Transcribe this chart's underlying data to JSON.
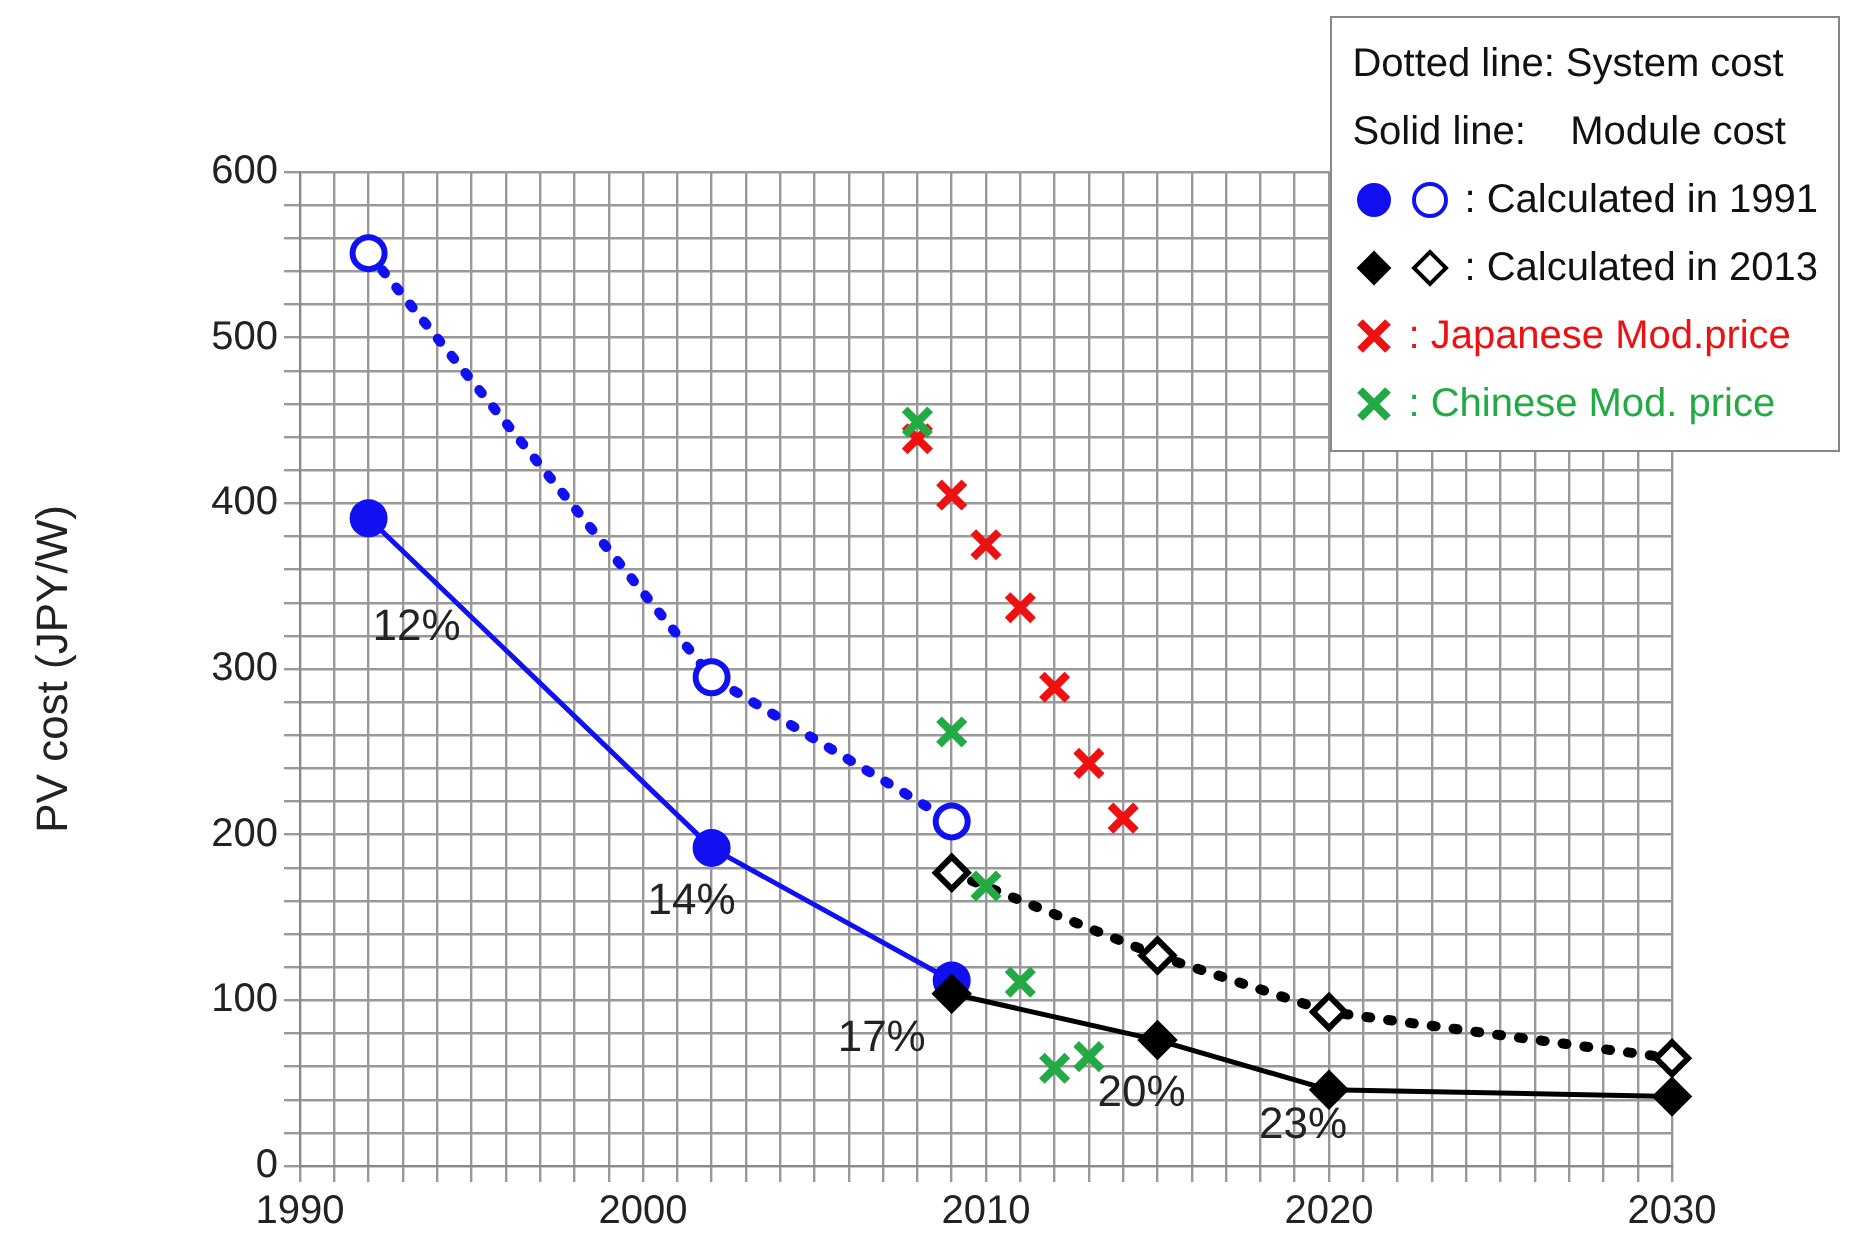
{
  "chart_data": {
    "type": "line",
    "ylabel": "PV cost (JPY/W)",
    "legend_title": "Dotted line: System cost\nSolid line:    Module cost",
    "legend": "top right",
    "grid": true,
    "xlim": [
      1990,
      2030
    ],
    "ylim": [
      0,
      600
    ],
    "xticks": [
      1990,
      {
        "value": 1991,
        "label": null
      },
      {
        "value": 1992,
        "label": null
      },
      {
        "value": 1993,
        "label": null
      },
      {
        "value": 1994,
        "label": null
      },
      {
        "value": 1995,
        "label": null
      },
      {
        "value": 1996,
        "label": null
      },
      {
        "value": 1997,
        "label": null
      },
      {
        "value": 1998,
        "label": null
      },
      {
        "value": 1999,
        "label": null
      },
      2000,
      {
        "value": 2001,
        "label": null
      },
      {
        "value": 2002,
        "label": null
      },
      {
        "value": 2003,
        "label": null
      },
      {
        "value": 2004,
        "label": null
      },
      {
        "value": 2005,
        "label": null
      },
      {
        "value": 2006,
        "label": null
      },
      {
        "value": 2007,
        "label": null
      },
      {
        "value": 2008,
        "label": null
      },
      {
        "value": 2009,
        "label": null
      },
      2010,
      {
        "value": 2011,
        "label": null
      },
      {
        "value": 2012,
        "label": null
      },
      {
        "value": 2013,
        "label": null
      },
      {
        "value": 2014,
        "label": null
      },
      {
        "value": 2015,
        "label": null
      },
      {
        "value": 2016,
        "label": null
      },
      {
        "value": 2017,
        "label": null
      },
      {
        "value": 2018,
        "label": null
      },
      {
        "value": 2019,
        "label": null
      },
      2020,
      {
        "value": 2021,
        "label": null
      },
      {
        "value": 2022,
        "label": null
      },
      {
        "value": 2023,
        "label": null
      },
      {
        "value": 2024,
        "label": null
      },
      {
        "value": 2025,
        "label": null
      },
      {
        "value": 2026,
        "label": null
      },
      {
        "value": 2027,
        "label": null
      },
      {
        "value": 2028,
        "label": null
      },
      {
        "value": 2029,
        "label": null
      },
      2030
    ],
    "yticks": [
      0,
      {
        "value": 20,
        "label": null
      },
      {
        "value": 40,
        "label": null
      },
      {
        "value": 60,
        "label": null
      },
      {
        "value": 80,
        "label": null
      },
      100,
      {
        "value": 120,
        "label": null
      },
      {
        "value": 140,
        "label": null
      },
      {
        "value": 160,
        "label": null
      },
      {
        "value": 180,
        "label": null
      },
      200,
      {
        "value": 220,
        "label": null
      },
      {
        "value": 240,
        "label": null
      },
      {
        "value": 260,
        "label": null
      },
      {
        "value": 280,
        "label": null
      },
      300,
      {
        "value": 320,
        "label": null
      },
      {
        "value": 340,
        "label": null
      },
      {
        "value": 360,
        "label": null
      },
      {
        "value": 380,
        "label": null
      },
      400,
      {
        "value": 420,
        "label": null
      },
      {
        "value": 440,
        "label": null
      },
      {
        "value": 460,
        "label": null
      },
      {
        "value": 480,
        "label": null
      },
      500,
      {
        "value": 520,
        "label": null
      },
      {
        "value": 540,
        "label": null
      },
      {
        "value": 560,
        "label": null
      },
      {
        "value": 580,
        "label": null
      },
      600
    ],
    "series": [
      {
        "color": "#1010f0",
        "marker": "circle",
        "line_style": "dotted",
        "x": [
          1992,
          2002,
          2009
        ],
        "values": [
          551,
          295,
          208
        ]
      },
      {
        "name": ": Calculated in 1991",
        "color": "#1010f0",
        "marker": "circle",
        "line_style": "solid",
        "x": [
          1992,
          2002,
          2009
        ],
        "values": [
          391,
          192,
          112
        ]
      },
      {
        "color": "#000000",
        "marker": "diamond",
        "line_style": "dotted",
        "x": [
          2009,
          2015,
          2020,
          2030
        ],
        "values": [
          177,
          127,
          93,
          65
        ]
      },
      {
        "name": ": Calculated in 2013",
        "color": "#000000",
        "marker": "diamond",
        "line_style": "solid",
        "x": [
          2009,
          2015,
          2020,
          2030
        ],
        "values": [
          104,
          76,
          46,
          42
        ]
      },
      {
        "name": ": Japanese Mod.price",
        "type": "scatter",
        "color": "#ee1111",
        "marker": "cross",
        "x": [
          2008,
          2009,
          2010,
          2011,
          2012,
          2013,
          2014
        ],
        "values": [
          439,
          405,
          375,
          337,
          289,
          243,
          210
        ]
      },
      {
        "name": ": Chinese Mod. price",
        "type": "scatter",
        "color": "#22aa44",
        "marker": "cross",
        "x": [
          2008,
          2009,
          2010,
          2011,
          2012,
          2013
        ],
        "values": [
          449,
          262,
          169,
          111,
          59,
          66
        ]
      }
    ],
    "annotations": [
      {
        "text": "12%",
        "x": 1992,
        "y": 391
      },
      {
        "text": "14%",
        "x": 2002,
        "y": 192
      },
      {
        "text": "17%",
        "x": 2009,
        "y": 112
      },
      {
        "text": "20%",
        "x": 2015,
        "y": 76
      },
      {
        "text": "23%",
        "x": 2020,
        "y": 46
      }
    ]
  }
}
